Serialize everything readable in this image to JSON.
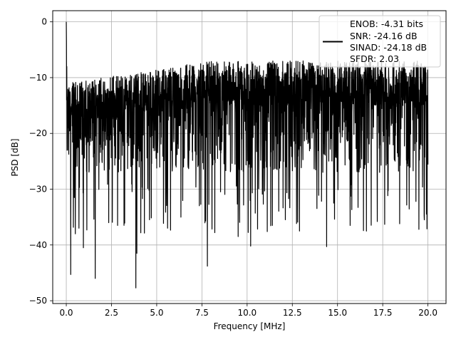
{
  "chart_data": {
    "type": "line",
    "xlabel": "Frequency [MHz]",
    "ylabel": "PSD [dB]",
    "xlim": [
      -0.75,
      21.0
    ],
    "ylim": [
      -50.5,
      2.0
    ],
    "x_ticks": [
      0.0,
      2.5,
      5.0,
      7.5,
      10.0,
      12.5,
      15.0,
      17.5,
      20.0
    ],
    "x_tick_labels": [
      "0.0",
      "2.5",
      "5.0",
      "7.5",
      "10.0",
      "12.5",
      "15.0",
      "17.5",
      "20.0"
    ],
    "y_ticks": [
      0,
      -10,
      -20,
      -30,
      -40,
      -50
    ],
    "y_tick_labels": [
      "0",
      "−10",
      "−20",
      "−30",
      "−40",
      "−50"
    ],
    "grid": true,
    "legend_position": "top-right",
    "legend_lines": [
      "ENOB: -4.31 bits",
      "SNR: -24.16 dB",
      "SINAD: -24.18 dB",
      "SFDR: 2.03"
    ],
    "series": [
      {
        "color": "#000000",
        "x_range": [
          0.0,
          20.0
        ],
        "typical_band_db": [
          -27,
          -11
        ],
        "peak": {
          "x": 0.0,
          "y": 0.0
        },
        "deep_nulls": [
          {
            "x": 0.25,
            "y": -45.3
          },
          {
            "x": 0.5,
            "y": -38
          },
          {
            "x": 0.7,
            "y": -37
          },
          {
            "x": 0.95,
            "y": -40.5
          },
          {
            "x": 1.6,
            "y": -46
          },
          {
            "x": 2.35,
            "y": -36
          },
          {
            "x": 3.85,
            "y": -47.7
          },
          {
            "x": 3.9,
            "y": -41.5
          },
          {
            "x": 5.6,
            "y": -37
          },
          {
            "x": 7.8,
            "y": -43.8
          },
          {
            "x": 9.5,
            "y": -38.5
          },
          {
            "x": 10.2,
            "y": -40.2
          },
          {
            "x": 11.4,
            "y": -36.5
          },
          {
            "x": 12.9,
            "y": -37.5
          },
          {
            "x": 14.4,
            "y": -40.3
          },
          {
            "x": 15.7,
            "y": -36.5
          },
          {
            "x": 17.2,
            "y": -35.8
          },
          {
            "x": 19.5,
            "y": -37.2
          },
          {
            "x": 19.8,
            "y": -35.5
          }
        ]
      }
    ]
  }
}
